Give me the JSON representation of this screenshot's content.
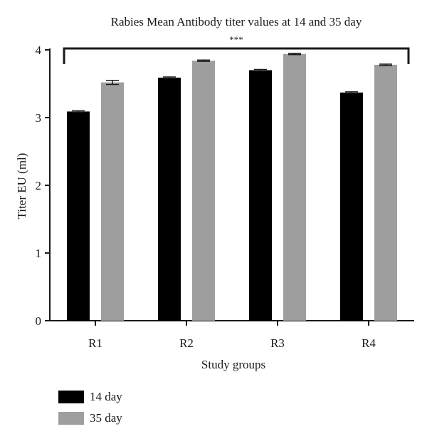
{
  "chart_data": {
    "type": "bar",
    "title": "Rabies Mean Antibody titer values at 14 and 35 day",
    "xlabel": "Study groups",
    "ylabel": "Titer EU (ml)",
    "categories": [
      "R1",
      "R2",
      "R3",
      "R4"
    ],
    "ylim": [
      0,
      4
    ],
    "yticks": [
      0,
      1,
      2,
      3,
      4
    ],
    "series": [
      {
        "name": "14 day",
        "color": "#000000",
        "values": [
          3.09,
          3.59,
          3.7,
          3.37
        ],
        "errors": [
          0.01,
          0.01,
          0.01,
          0.01
        ]
      },
      {
        "name": "35 day",
        "color": "#9e9e9e",
        "values": [
          3.52,
          3.84,
          3.94,
          3.78
        ],
        "errors": [
          0.03,
          0.01,
          0.01,
          0.01
        ]
      }
    ],
    "annotation": "***",
    "legend_position": "bottom-left",
    "grid": false
  }
}
